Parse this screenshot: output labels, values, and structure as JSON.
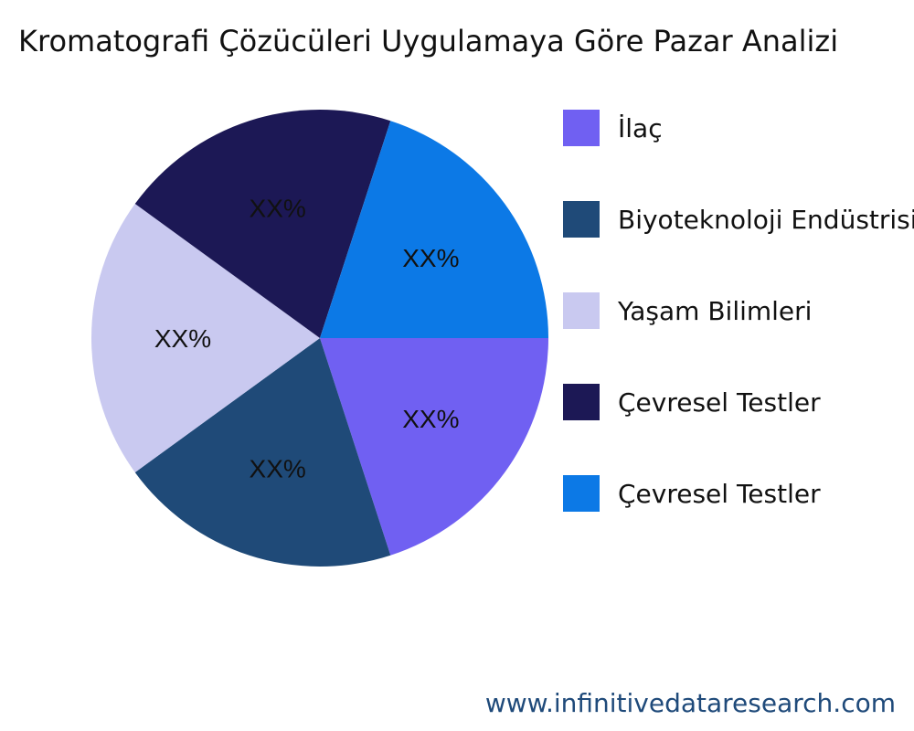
{
  "chart_data": {
    "type": "pie",
    "title": "Kromatografi Çözücüleri Uygulamaya Göre Pazar Analizi",
    "slices": [
      {
        "name": "İlaç",
        "value": 20,
        "label": "XX%",
        "color": "#7060f2"
      },
      {
        "name": "Biyoteknoloji Endüstrisi",
        "value": 20,
        "label": "XX%",
        "color": "#1f4a78"
      },
      {
        "name": "Yaşam Bilimleri",
        "value": 20,
        "label": "XX%",
        "color": "#c9c9f0"
      },
      {
        "name": "Çevresel Testler",
        "value": 20,
        "label": "XX%",
        "color": "#1c1855"
      },
      {
        "name": "Çevresel Testler",
        "value": 20,
        "label": "XX%",
        "color": "#0c79e6"
      }
    ],
    "legend_position": "right"
  },
  "watermark": "www.infinitivedataresearch.com"
}
